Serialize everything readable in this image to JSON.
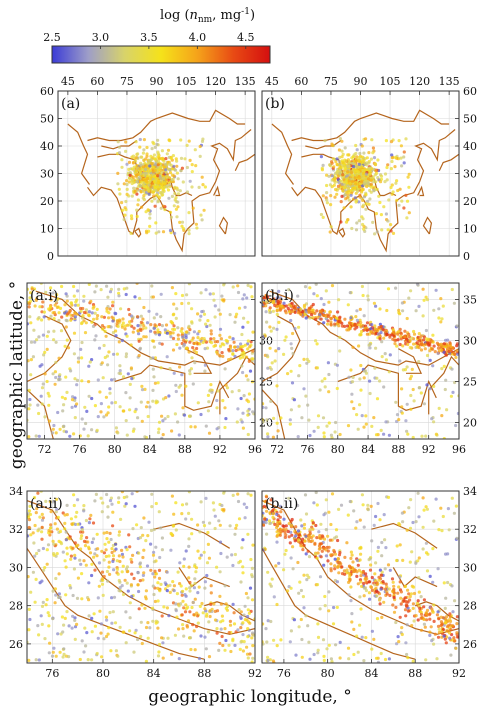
{
  "colorbar": {
    "title_prefix": "log (",
    "title_var": "n",
    "title_sub": "nm",
    "title_unit": ", mg",
    "title_sup": "-1",
    "title_close": ")",
    "ticks": [
      "2.5",
      "3.0",
      "3.5",
      "4.0",
      "4.5"
    ],
    "range": [
      2.5,
      4.75
    ],
    "colors": [
      "#3b3bd6",
      "#9e9ec8",
      "#d8d36a",
      "#f5e21a",
      "#f5a31a",
      "#e84a14",
      "#d40f0f"
    ]
  },
  "border_color": "#b5651d",
  "xlabel": "geographic longitude, °",
  "ylabel": "geographic latitude, °",
  "chart_data": [
    {
      "type": "scatter",
      "panel": "(a)",
      "xlim": [
        40,
        140
      ],
      "ylim": [
        0,
        60
      ],
      "xticks": [
        45,
        60,
        75,
        90,
        105,
        120,
        135
      ],
      "xtick_position": "top",
      "yticks": [
        0,
        10,
        20,
        30,
        40,
        50,
        60
      ],
      "ytick_position": "left",
      "grid": true,
      "cluster": {
        "lon_range": [
          68,
          110
        ],
        "lat_range": [
          15,
          40
        ],
        "center": [
          88,
          30
        ]
      },
      "note": "color = log(n_nm, mg^-1)"
    },
    {
      "type": "scatter",
      "panel": "(b)",
      "xlim": [
        40,
        140
      ],
      "ylim": [
        0,
        60
      ],
      "xticks": [
        45,
        60,
        75,
        90,
        105,
        120,
        135
      ],
      "xtick_position": "top",
      "yticks": [
        0,
        10,
        20,
        30,
        40,
        50,
        60
      ],
      "ytick_position": "right",
      "grid": true,
      "cluster": {
        "lon_range": [
          68,
          110
        ],
        "lat_range": [
          15,
          40
        ],
        "center": [
          88,
          30
        ]
      }
    },
    {
      "type": "scatter",
      "panel": "(a.i)",
      "xlim": [
        70,
        96
      ],
      "ylim": [
        18,
        37
      ],
      "xticks": [
        72,
        76,
        80,
        84,
        88,
        92,
        96
      ],
      "xtick_position": "bottom",
      "yticks": [
        20,
        25,
        30,
        35
      ],
      "ytick_position": "right",
      "grid": true
    },
    {
      "type": "scatter",
      "panel": "(b.i)",
      "xlim": [
        70,
        96
      ],
      "ylim": [
        18,
        37
      ],
      "xticks": [
        72,
        76,
        80,
        84,
        88,
        92,
        96
      ],
      "xtick_position": "bottom",
      "yticks": [
        20,
        25,
        30,
        35
      ],
      "ytick_position": "right",
      "grid": true
    },
    {
      "type": "scatter",
      "panel": "(a.ii)",
      "xlim": [
        74,
        92
      ],
      "ylim": [
        25,
        34
      ],
      "xticks": [
        76,
        80,
        84,
        88,
        92
      ],
      "xtick_position": "bottom",
      "yticks": [
        26,
        28,
        30,
        32,
        34
      ],
      "ytick_position": "left",
      "grid": true
    },
    {
      "type": "scatter",
      "panel": "(b.ii)",
      "xlim": [
        74,
        92
      ],
      "ylim": [
        25,
        34
      ],
      "xticks": [
        76,
        80,
        84,
        88,
        92
      ],
      "xtick_position": "bottom",
      "yticks": [
        26,
        28,
        30,
        32,
        34
      ],
      "ytick_position": "right",
      "grid": true
    }
  ]
}
